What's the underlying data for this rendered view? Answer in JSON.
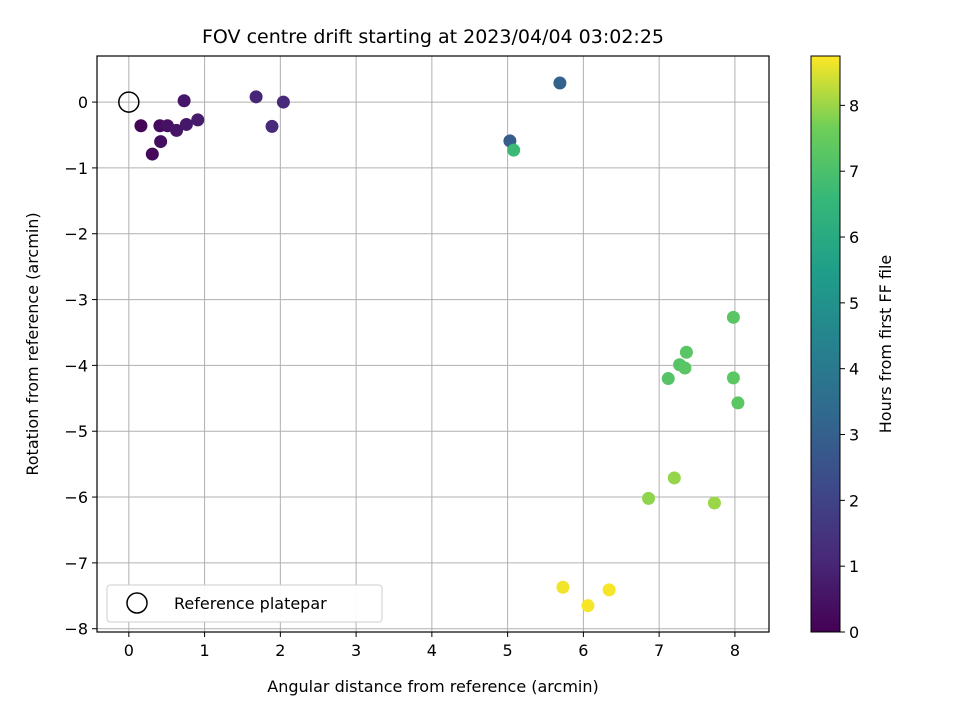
{
  "chart_data": {
    "type": "scatter",
    "title": "FOV centre drift starting at 2023/04/04 03:02:25",
    "xlabel": "Angular distance from reference (arcmin)",
    "ylabel": "Rotation from reference (arcmin)",
    "xlim": [
      -0.42,
      8.45
    ],
    "ylim": [
      -8.05,
      0.7
    ],
    "xticks": [
      0,
      1,
      2,
      3,
      4,
      5,
      6,
      7,
      8
    ],
    "yticks": [
      0,
      -1,
      -2,
      -3,
      -4,
      -5,
      -6,
      -7,
      -8
    ],
    "grid": true,
    "legend": {
      "placement": "lower-left",
      "entries": [
        "Reference platepar"
      ]
    },
    "reference_point": {
      "x": 0,
      "y": 0,
      "name": "Reference platepar"
    },
    "colorbar": {
      "label": "Hours from first FF file",
      "range": [
        0,
        8.75
      ],
      "ticks": [
        0,
        1,
        2,
        3,
        4,
        5,
        6,
        7,
        8
      ],
      "colormap": "viridis"
    },
    "points": [
      {
        "x": 0.16,
        "y": -0.36,
        "h": 0.1
      },
      {
        "x": 0.31,
        "y": -0.79,
        "h": 0.2
      },
      {
        "x": 0.41,
        "y": -0.36,
        "h": 0.3
      },
      {
        "x": 0.42,
        "y": -0.6,
        "h": 0.4
      },
      {
        "x": 0.51,
        "y": -0.36,
        "h": 0.45
      },
      {
        "x": 0.63,
        "y": -0.43,
        "h": 0.55
      },
      {
        "x": 0.73,
        "y": 0.02,
        "h": 0.6
      },
      {
        "x": 0.76,
        "y": -0.34,
        "h": 0.65
      },
      {
        "x": 0.91,
        "y": -0.27,
        "h": 0.75
      },
      {
        "x": 1.68,
        "y": 0.08,
        "h": 1.05
      },
      {
        "x": 1.89,
        "y": -0.37,
        "h": 1.15
      },
      {
        "x": 2.04,
        "y": 0.0,
        "h": 1.2
      },
      {
        "x": 5.03,
        "y": -0.59,
        "h": 2.9
      },
      {
        "x": 5.69,
        "y": 0.29,
        "h": 3.1
      },
      {
        "x": 5.08,
        "y": -0.73,
        "h": 6.7
      },
      {
        "x": 7.12,
        "y": -4.2,
        "h": 7.2
      },
      {
        "x": 7.27,
        "y": -3.99,
        "h": 7.2
      },
      {
        "x": 7.34,
        "y": -4.04,
        "h": 7.25
      },
      {
        "x": 7.36,
        "y": -3.8,
        "h": 7.25
      },
      {
        "x": 7.98,
        "y": -3.27,
        "h": 7.25
      },
      {
        "x": 7.98,
        "y": -4.19,
        "h": 7.3
      },
      {
        "x": 8.04,
        "y": -4.57,
        "h": 7.3
      },
      {
        "x": 6.86,
        "y": -6.02,
        "h": 7.9
      },
      {
        "x": 7.2,
        "y": -5.71,
        "h": 7.95
      },
      {
        "x": 7.73,
        "y": -6.09,
        "h": 8.0
      },
      {
        "x": 5.73,
        "y": -7.37,
        "h": 8.65
      },
      {
        "x": 6.06,
        "y": -7.65,
        "h": 8.7
      },
      {
        "x": 6.34,
        "y": -7.41,
        "h": 8.7
      }
    ]
  }
}
